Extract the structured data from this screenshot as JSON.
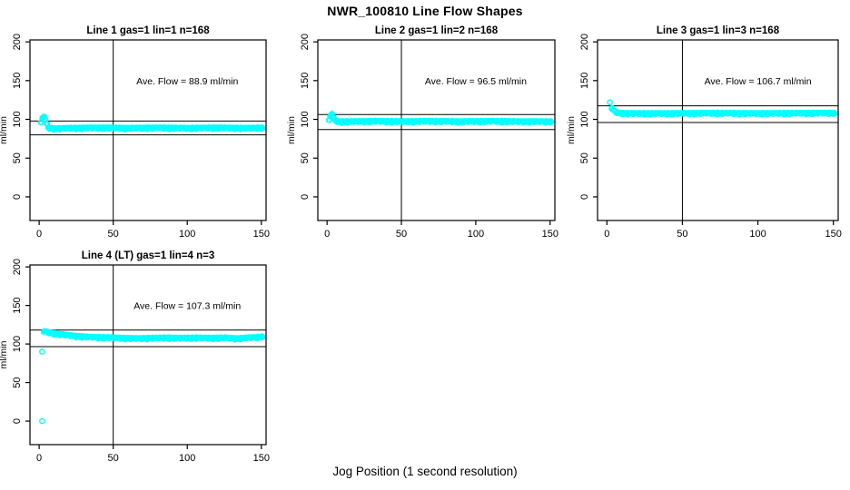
{
  "figure": {
    "title": "NWR_100810  Line Flow Shapes",
    "xlabel": "Jog Position (1 second resolution)"
  },
  "chart_data": [
    {
      "type": "scatter",
      "title": "Line 1 gas=1 lin=1 n=168",
      "annotation": "Ave. Flow =  88.9  ml/min",
      "ave_flow_ml_min": 88.9,
      "n": 168,
      "ylabel": "ml/min",
      "x_ticks": [
        0,
        50,
        100,
        150
      ],
      "y_ticks": [
        0,
        50,
        100,
        150,
        200
      ],
      "xlim": [
        -6.2,
        153.2
      ],
      "ylim": [
        -30.5,
        202.5
      ],
      "vline_x": 50,
      "hlines": [
        97.8,
        80.0
      ],
      "point_color": "#00ffff",
      "band": [
        [
          1,
          95
        ],
        [
          2,
          101
        ],
        [
          3,
          103
        ],
        [
          4,
          99
        ],
        [
          5,
          93
        ],
        [
          6,
          89.5
        ],
        [
          7,
          88
        ],
        [
          10,
          87.5
        ],
        [
          20,
          88
        ],
        [
          40,
          88.5
        ],
        [
          60,
          88
        ],
        [
          80,
          88.5
        ],
        [
          100,
          88
        ],
        [
          120,
          88.5
        ],
        [
          140,
          88
        ],
        [
          151,
          88.5
        ]
      ],
      "outliers": []
    },
    {
      "type": "scatter",
      "title": "Line 2 gas=1 lin=2 n=168",
      "annotation": "Ave. Flow =  96.5  ml/min",
      "ave_flow_ml_min": 96.5,
      "n": 168,
      "ylabel": "ml/min",
      "x_ticks": [
        0,
        50,
        100,
        150
      ],
      "y_ticks": [
        0,
        50,
        100,
        150,
        200
      ],
      "xlim": [
        -6.2,
        153.2
      ],
      "ylim": [
        -30.5,
        202.5
      ],
      "vline_x": 50,
      "hlines": [
        106.2,
        86.9
      ],
      "point_color": "#00ffff",
      "band": [
        [
          1,
          98
        ],
        [
          2,
          104
        ],
        [
          3,
          106.5
        ],
        [
          4,
          102
        ],
        [
          5,
          98.5
        ],
        [
          7,
          96.5
        ],
        [
          15,
          96.5
        ],
        [
          30,
          97
        ],
        [
          50,
          96.5
        ],
        [
          70,
          97
        ],
        [
          90,
          96.5
        ],
        [
          110,
          97
        ],
        [
          130,
          96.5
        ],
        [
          151,
          96.5
        ]
      ],
      "outliers": []
    },
    {
      "type": "scatter",
      "title": "Line 3 gas=1 lin=3 n=168",
      "annotation": "Ave. Flow =  106.7  ml/min",
      "ave_flow_ml_min": 106.7,
      "n": 168,
      "ylabel": "ml/min",
      "x_ticks": [
        0,
        50,
        100,
        150
      ],
      "y_ticks": [
        0,
        50,
        100,
        150,
        200
      ],
      "xlim": [
        -6.2,
        153.2
      ],
      "ylim": [
        -30.5,
        202.5
      ],
      "vline_x": 50,
      "hlines": [
        117.4,
        96.0
      ],
      "point_color": "#00ffff",
      "band": [
        [
          3,
          114
        ],
        [
          4,
          111
        ],
        [
          5,
          109.5
        ],
        [
          6,
          108.5
        ],
        [
          8,
          107.5
        ],
        [
          15,
          107
        ],
        [
          40,
          107
        ],
        [
          70,
          107.5
        ],
        [
          100,
          107
        ],
        [
          130,
          107.5
        ],
        [
          151,
          107.5
        ]
      ],
      "outliers": [
        [
          2,
          122
        ]
      ]
    },
    {
      "type": "scatter",
      "title": "Line 4 (LT) gas=1 lin=4 n=3",
      "annotation": "Ave. Flow =  107.3  ml/min",
      "ave_flow_ml_min": 107.3,
      "n": 3,
      "ylabel": "ml/min",
      "x_ticks": [
        0,
        50,
        100,
        150
      ],
      "y_ticks": [
        0,
        50,
        100,
        150,
        200
      ],
      "xlim": [
        -6.2,
        153.2
      ],
      "ylim": [
        -30.5,
        202.5
      ],
      "vline_x": 50,
      "hlines": [
        118.0,
        96.6
      ],
      "point_color": "#00ffff",
      "band": [
        [
          3,
          116
        ],
        [
          5,
          115
        ],
        [
          8,
          113.5
        ],
        [
          12,
          112.5
        ],
        [
          18,
          111
        ],
        [
          25,
          109.5
        ],
        [
          32,
          108.5
        ],
        [
          40,
          108
        ],
        [
          50,
          107.5
        ],
        [
          58,
          107
        ],
        [
          65,
          106.5
        ],
        [
          75,
          107
        ],
        [
          85,
          107.5
        ],
        [
          95,
          107
        ],
        [
          105,
          107.5
        ],
        [
          115,
          107
        ],
        [
          125,
          107.5
        ],
        [
          133,
          106.5
        ],
        [
          140,
          107.5
        ],
        [
          146,
          108
        ],
        [
          151,
          109
        ]
      ],
      "outliers": [
        [
          2,
          90
        ],
        [
          2,
          0
        ]
      ]
    }
  ]
}
